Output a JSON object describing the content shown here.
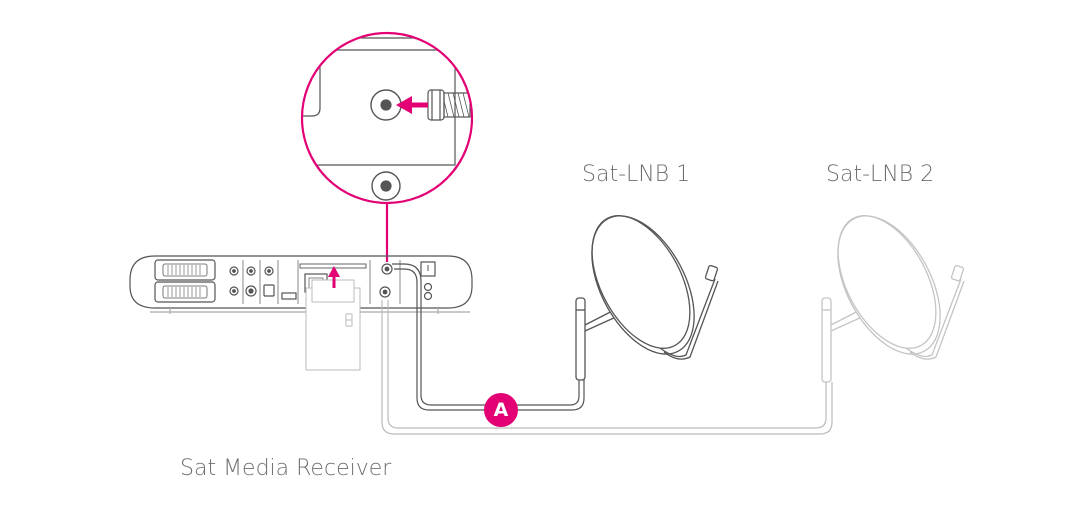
{
  "labels": {
    "lnb1": "Sat-LNB 1",
    "lnb2": "Sat-LNB 2",
    "receiver": "Sat Media Receiver",
    "cable_marker": "A"
  },
  "colors": {
    "accent": "#e20074",
    "line": "#555555",
    "line_faded": "#bdbdbd",
    "text": "#6e6e6e"
  },
  "icons": [
    "coax-plug-icon",
    "arrow-icon",
    "satellite-dish-icon",
    "receiver-icon"
  ]
}
